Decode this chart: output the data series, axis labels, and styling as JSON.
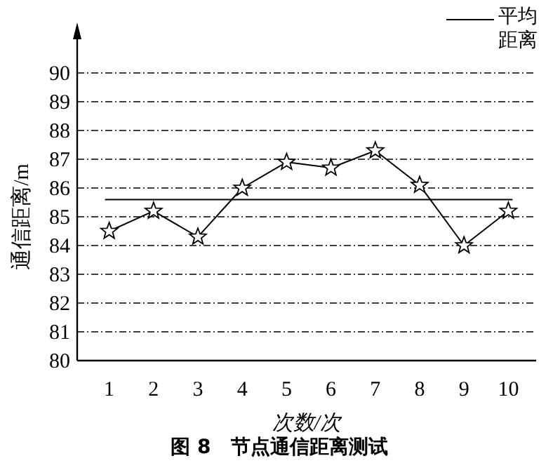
{
  "chart_data": {
    "type": "line",
    "title": "图 8　节点通信距离测试",
    "xlabel": "次数/次",
    "ylabel": "通信距离/m",
    "categories": [
      "1",
      "2",
      "3",
      "4",
      "5",
      "6",
      "7",
      "8",
      "9",
      "10"
    ],
    "series": [
      {
        "color": "#000000",
        "values": [
          84.5,
          85.2,
          84.3,
          86.0,
          86.9,
          86.7,
          87.3,
          86.1,
          84.0,
          85.2
        ]
      }
    ],
    "ref_lines": [
      {
        "axis": "y",
        "value": 85.6,
        "label": "平均距离",
        "color": "#000000",
        "line_style": "solid"
      }
    ],
    "ylim": [
      80,
      90
    ],
    "yticks": [
      80,
      81,
      82,
      83,
      84,
      85,
      86,
      87,
      88,
      89,
      90
    ],
    "grid": "y",
    "marker": "star",
    "line_style": "solid",
    "legend": "top right"
  }
}
